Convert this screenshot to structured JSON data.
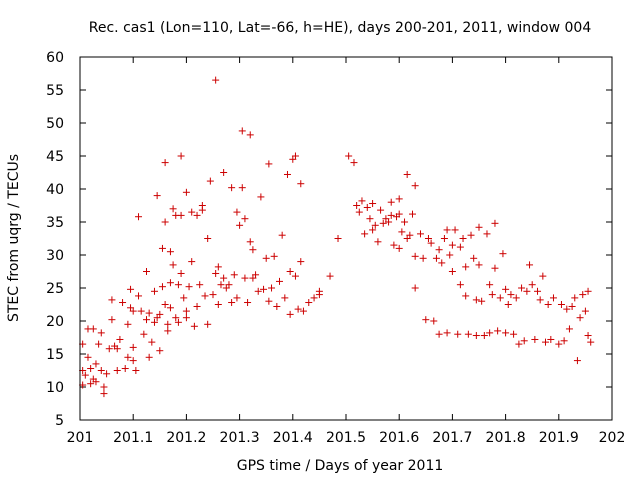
{
  "chart_data": {
    "type": "scatter",
    "title": "Rec. cas1 (Lon=110, Lat=-66, h=HE), days 200-201, 2011, window 004",
    "xlabel": "GPS time / Days of year 2011",
    "ylabel": "STEC from uqrg / TECUs",
    "xlim": [
      201,
      202
    ],
    "ylim": [
      5,
      60
    ],
    "xticks": [
      201,
      201.1,
      201.2,
      201.3,
      201.4,
      201.5,
      201.6,
      201.7,
      201.8,
      201.9,
      202
    ],
    "xtick_labels": [
      "201",
      "201.1",
      "201.2",
      "201.3",
      "201.4",
      "201.5",
      "201.6",
      "201.7",
      "201.8",
      "201.9",
      "202"
    ],
    "yticks": [
      5,
      10,
      15,
      20,
      25,
      30,
      35,
      40,
      45,
      50,
      55,
      60
    ],
    "ytick_labels": [
      "5",
      "10",
      "15",
      "20",
      "25",
      "30",
      "35",
      "40",
      "45",
      "50",
      "55",
      "60"
    ],
    "marker": "+",
    "color": "#cc0000",
    "points": [
      [
        201.005,
        16.5
      ],
      [
        201.005,
        12.5
      ],
      [
        201.005,
        10.3
      ],
      [
        201.01,
        11.8
      ],
      [
        201.015,
        14.5
      ],
      [
        201.015,
        18.8
      ],
      [
        201.02,
        12.8
      ],
      [
        201.02,
        10.5
      ],
      [
        201.025,
        11.2
      ],
      [
        201.025,
        18.8
      ],
      [
        201.03,
        13.5
      ],
      [
        201.03,
        10.8
      ],
      [
        201.035,
        16.5
      ],
      [
        201.04,
        12.5
      ],
      [
        201.04,
        18.2
      ],
      [
        201.045,
        10.0
      ],
      [
        201.045,
        9.0
      ],
      [
        201.05,
        12.0
      ],
      [
        201.055,
        15.8
      ],
      [
        201.06,
        20.2
      ],
      [
        201.06,
        23.2
      ],
      [
        201.065,
        16.2
      ],
      [
        201.07,
        12.5
      ],
      [
        201.07,
        15.8
      ],
      [
        201.075,
        17.2
      ],
      [
        201.08,
        22.8
      ],
      [
        201.085,
        12.8
      ],
      [
        201.09,
        19.5
      ],
      [
        201.09,
        14.5
      ],
      [
        201.095,
        22.0
      ],
      [
        201.095,
        24.8
      ],
      [
        201.1,
        21.5
      ],
      [
        201.1,
        16.0
      ],
      [
        201.1,
        14.0
      ],
      [
        201.105,
        12.5
      ],
      [
        201.11,
        35.8
      ],
      [
        201.11,
        23.8
      ],
      [
        201.115,
        21.5
      ],
      [
        201.12,
        18.0
      ],
      [
        201.125,
        20.2
      ],
      [
        201.125,
        27.5
      ],
      [
        201.13,
        14.5
      ],
      [
        201.13,
        21.2
      ],
      [
        201.135,
        16.8
      ],
      [
        201.14,
        19.8
      ],
      [
        201.14,
        24.5
      ],
      [
        201.145,
        39.0
      ],
      [
        201.145,
        20.5
      ],
      [
        201.15,
        15.5
      ],
      [
        201.15,
        21.0
      ],
      [
        201.155,
        25.2
      ],
      [
        201.155,
        31.0
      ],
      [
        201.16,
        44.0
      ],
      [
        201.16,
        35.0
      ],
      [
        201.16,
        22.5
      ],
      [
        201.165,
        18.5
      ],
      [
        201.165,
        19.5
      ],
      [
        201.17,
        25.8
      ],
      [
        201.17,
        30.5
      ],
      [
        201.17,
        22.0
      ],
      [
        201.175,
        37.0
      ],
      [
        201.175,
        28.5
      ],
      [
        201.18,
        36.0
      ],
      [
        201.18,
        20.5
      ],
      [
        201.185,
        25.5
      ],
      [
        201.185,
        19.8
      ],
      [
        201.19,
        45.0
      ],
      [
        201.19,
        36.0
      ],
      [
        201.19,
        27.2
      ],
      [
        201.195,
        23.5
      ],
      [
        201.2,
        39.5
      ],
      [
        201.2,
        21.5
      ],
      [
        201.2,
        20.5
      ],
      [
        201.205,
        25.2
      ],
      [
        201.21,
        36.5
      ],
      [
        201.21,
        29.0
      ],
      [
        201.215,
        19.2
      ],
      [
        201.22,
        36.0
      ],
      [
        201.22,
        22.2
      ],
      [
        201.225,
        25.5
      ],
      [
        201.23,
        37.5
      ],
      [
        201.23,
        36.8
      ],
      [
        201.235,
        23.8
      ],
      [
        201.24,
        32.5
      ],
      [
        201.24,
        19.5
      ],
      [
        201.245,
        41.2
      ],
      [
        201.25,
        24.0
      ],
      [
        201.255,
        56.5
      ],
      [
        201.255,
        27.2
      ],
      [
        201.26,
        28.2
      ],
      [
        201.26,
        22.5
      ],
      [
        201.265,
        25.5
      ],
      [
        201.27,
        42.5
      ],
      [
        201.27,
        26.5
      ],
      [
        201.275,
        25.0
      ],
      [
        201.28,
        25.5
      ],
      [
        201.285,
        40.2
      ],
      [
        201.285,
        22.8
      ],
      [
        201.29,
        27.0
      ],
      [
        201.295,
        36.5
      ],
      [
        201.295,
        23.5
      ],
      [
        201.3,
        34.5
      ],
      [
        201.305,
        48.8
      ],
      [
        201.305,
        40.2
      ],
      [
        201.31,
        35.5
      ],
      [
        201.31,
        26.5
      ],
      [
        201.315,
        22.8
      ],
      [
        201.32,
        48.2
      ],
      [
        201.32,
        32.0
      ],
      [
        201.325,
        30.8
      ],
      [
        201.325,
        26.5
      ],
      [
        201.33,
        27.0
      ],
      [
        201.335,
        24.5
      ],
      [
        201.34,
        38.8
      ],
      [
        201.345,
        24.8
      ],
      [
        201.35,
        29.5
      ],
      [
        201.355,
        43.8
      ],
      [
        201.355,
        23.0
      ],
      [
        201.36,
        25.0
      ],
      [
        201.365,
        29.8
      ],
      [
        201.37,
        22.2
      ],
      [
        201.375,
        26.0
      ],
      [
        201.38,
        33.0
      ],
      [
        201.385,
        23.5
      ],
      [
        201.39,
        42.2
      ],
      [
        201.395,
        27.5
      ],
      [
        201.395,
        21.0
      ],
      [
        201.4,
        44.5
      ],
      [
        201.405,
        45.0
      ],
      [
        201.405,
        26.8
      ],
      [
        201.41,
        21.8
      ],
      [
        201.415,
        40.8
      ],
      [
        201.415,
        29.0
      ],
      [
        201.42,
        21.5
      ],
      [
        201.43,
        22.8
      ],
      [
        201.44,
        23.5
      ],
      [
        201.45,
        24.0
      ],
      [
        201.45,
        24.5
      ],
      [
        201.47,
        26.8
      ],
      [
        201.485,
        32.5
      ],
      [
        201.505,
        45.0
      ],
      [
        201.515,
        44.0
      ],
      [
        201.52,
        37.5
      ],
      [
        201.525,
        36.5
      ],
      [
        201.53,
        38.2
      ],
      [
        201.535,
        33.2
      ],
      [
        201.54,
        37.2
      ],
      [
        201.545,
        35.5
      ],
      [
        201.55,
        37.8
      ],
      [
        201.55,
        33.8
      ],
      [
        201.555,
        34.5
      ],
      [
        201.56,
        32.0
      ],
      [
        201.565,
        36.8
      ],
      [
        201.57,
        34.8
      ],
      [
        201.575,
        35.5
      ],
      [
        201.58,
        35.0
      ],
      [
        201.585,
        38.0
      ],
      [
        201.585,
        36.0
      ],
      [
        201.59,
        31.5
      ],
      [
        201.595,
        35.8
      ],
      [
        201.6,
        38.5
      ],
      [
        201.6,
        36.2
      ],
      [
        201.6,
        31.0
      ],
      [
        201.605,
        33.5
      ],
      [
        201.61,
        35.0
      ],
      [
        201.615,
        42.2
      ],
      [
        201.615,
        32.5
      ],
      [
        201.62,
        33.0
      ],
      [
        201.625,
        36.2
      ],
      [
        201.63,
        40.5
      ],
      [
        201.63,
        29.8
      ],
      [
        201.63,
        25.0
      ],
      [
        201.64,
        33.2
      ],
      [
        201.645,
        29.5
      ],
      [
        201.65,
        20.2
      ],
      [
        201.655,
        32.5
      ],
      [
        201.66,
        31.8
      ],
      [
        201.665,
        20.0
      ],
      [
        201.67,
        29.5
      ],
      [
        201.675,
        30.8
      ],
      [
        201.675,
        18.0
      ],
      [
        201.68,
        28.8
      ],
      [
        201.685,
        32.5
      ],
      [
        201.69,
        33.8
      ],
      [
        201.69,
        18.2
      ],
      [
        201.695,
        30.0
      ],
      [
        201.7,
        31.5
      ],
      [
        201.7,
        27.5
      ],
      [
        201.705,
        33.8
      ],
      [
        201.71,
        18.0
      ],
      [
        201.715,
        31.2
      ],
      [
        201.715,
        25.5
      ],
      [
        201.72,
        32.5
      ],
      [
        201.725,
        28.2
      ],
      [
        201.725,
        23.8
      ],
      [
        201.73,
        18.0
      ],
      [
        201.735,
        33.0
      ],
      [
        201.74,
        29.5
      ],
      [
        201.745,
        23.2
      ],
      [
        201.745,
        17.8
      ],
      [
        201.75,
        34.2
      ],
      [
        201.75,
        28.5
      ],
      [
        201.755,
        23.0
      ],
      [
        201.76,
        17.8
      ],
      [
        201.765,
        33.2
      ],
      [
        201.77,
        25.5
      ],
      [
        201.77,
        18.2
      ],
      [
        201.775,
        24.0
      ],
      [
        201.78,
        34.8
      ],
      [
        201.78,
        28.0
      ],
      [
        201.785,
        18.5
      ],
      [
        201.79,
        23.5
      ],
      [
        201.795,
        30.2
      ],
      [
        201.8,
        24.8
      ],
      [
        201.8,
        18.2
      ],
      [
        201.805,
        22.5
      ],
      [
        201.81,
        24.0
      ],
      [
        201.815,
        18.0
      ],
      [
        201.82,
        23.5
      ],
      [
        201.825,
        16.5
      ],
      [
        201.83,
        25.0
      ],
      [
        201.835,
        17.0
      ],
      [
        201.84,
        24.5
      ],
      [
        201.845,
        28.5
      ],
      [
        201.85,
        25.5
      ],
      [
        201.855,
        17.2
      ],
      [
        201.86,
        24.5
      ],
      [
        201.865,
        23.2
      ],
      [
        201.87,
        26.8
      ],
      [
        201.875,
        16.8
      ],
      [
        201.88,
        22.5
      ],
      [
        201.885,
        17.2
      ],
      [
        201.89,
        23.5
      ],
      [
        201.9,
        16.5
      ],
      [
        201.905,
        22.5
      ],
      [
        201.91,
        17.0
      ],
      [
        201.915,
        21.8
      ],
      [
        201.92,
        18.8
      ],
      [
        201.925,
        22.2
      ],
      [
        201.93,
        23.5
      ],
      [
        201.935,
        14.0
      ],
      [
        201.94,
        20.5
      ],
      [
        201.945,
        24.0
      ],
      [
        201.95,
        21.5
      ],
      [
        201.955,
        24.5
      ],
      [
        201.955,
        17.8
      ],
      [
        201.96,
        16.8
      ]
    ]
  }
}
